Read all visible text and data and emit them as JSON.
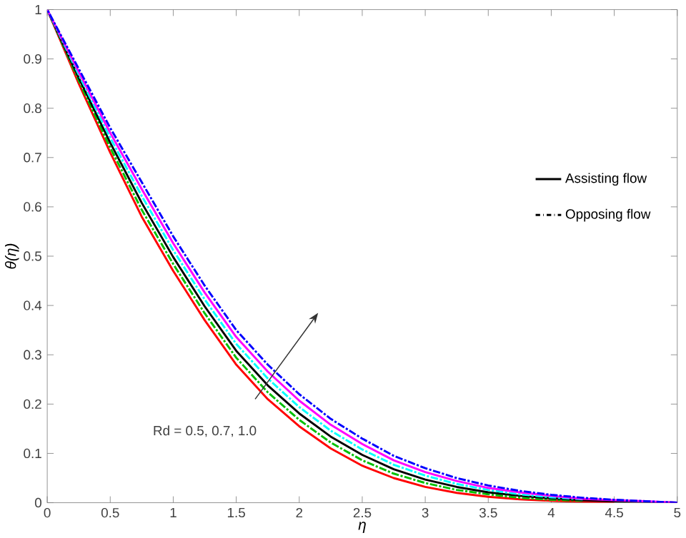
{
  "chart_data": {
    "type": "line",
    "xlabel": "η",
    "ylabel": "θ(η)",
    "x": [
      0,
      0.25,
      0.5,
      0.75,
      1,
      1.25,
      1.5,
      1.75,
      2,
      2.25,
      2.5,
      2.75,
      3,
      3.25,
      3.5,
      3.75,
      4,
      4.25,
      4.5,
      4.75,
      5
    ],
    "series": [
      {
        "color": "#ff0000",
        "line_style": "solid",
        "values": [
          1,
          0.85,
          0.71,
          0.58,
          0.47,
          0.37,
          0.28,
          0.21,
          0.155,
          0.11,
          0.075,
          0.05,
          0.032,
          0.02,
          0.012,
          0.007,
          0.004,
          0.002,
          0.001,
          null,
          null
        ]
      },
      {
        "color": "#00c000",
        "line_style": "dashdot",
        "values": [
          1,
          0.856,
          0.72,
          0.594,
          0.484,
          0.384,
          0.294,
          0.224,
          0.168,
          0.122,
          0.086,
          0.059,
          0.04,
          0.026,
          0.017,
          0.01,
          0.006,
          0.004,
          null,
          null,
          null
        ]
      },
      {
        "color": "#000000",
        "line_style": "solid",
        "values": [
          1,
          0.862,
          0.73,
          0.608,
          0.498,
          0.398,
          0.308,
          0.238,
          0.181,
          0.134,
          0.097,
          0.068,
          0.047,
          0.032,
          0.021,
          0.014,
          0.009,
          0.005,
          0.003,
          0.002,
          0
        ]
      },
      {
        "color": "#00ffff",
        "line_style": "dashdot",
        "values": [
          1,
          0.868,
          0.74,
          0.622,
          0.512,
          0.412,
          0.322,
          0.252,
          0.194,
          0.146,
          0.108,
          0.077,
          0.055,
          0.038,
          0.026,
          0.017,
          0.011,
          0.007,
          null,
          null,
          null
        ]
      },
      {
        "color": "#ff00ff",
        "line_style": "solid",
        "values": [
          1,
          0.874,
          0.75,
          0.636,
          0.526,
          0.426,
          0.336,
          0.266,
          0.207,
          0.158,
          0.119,
          0.086,
          0.062,
          0.044,
          0.03,
          0.021,
          0.014,
          0.008,
          0.005,
          0.003,
          0
        ]
      },
      {
        "color": "#0000ff",
        "line_style": "dashdot",
        "values": [
          1,
          0.88,
          0.76,
          0.65,
          0.54,
          0.44,
          0.35,
          0.28,
          0.22,
          0.17,
          0.13,
          0.095,
          0.07,
          0.05,
          0.035,
          0.024,
          0.016,
          0.01,
          0.006,
          0.003,
          0
        ]
      }
    ],
    "xlim": [
      0,
      5
    ],
    "ylim": [
      0,
      1
    ],
    "xticks": [
      0,
      0.5,
      1,
      1.5,
      2,
      2.5,
      3,
      3.5,
      4,
      4.5,
      5
    ],
    "yticks": [
      0,
      0.1,
      0.2,
      0.3,
      0.4,
      0.5,
      0.6,
      0.7,
      0.8,
      0.9,
      1
    ],
    "grid": false,
    "annotations": [
      "Rd = 0.5, 0.7, 1.0",
      "Assisting flow",
      "Opposing flow"
    ]
  }
}
